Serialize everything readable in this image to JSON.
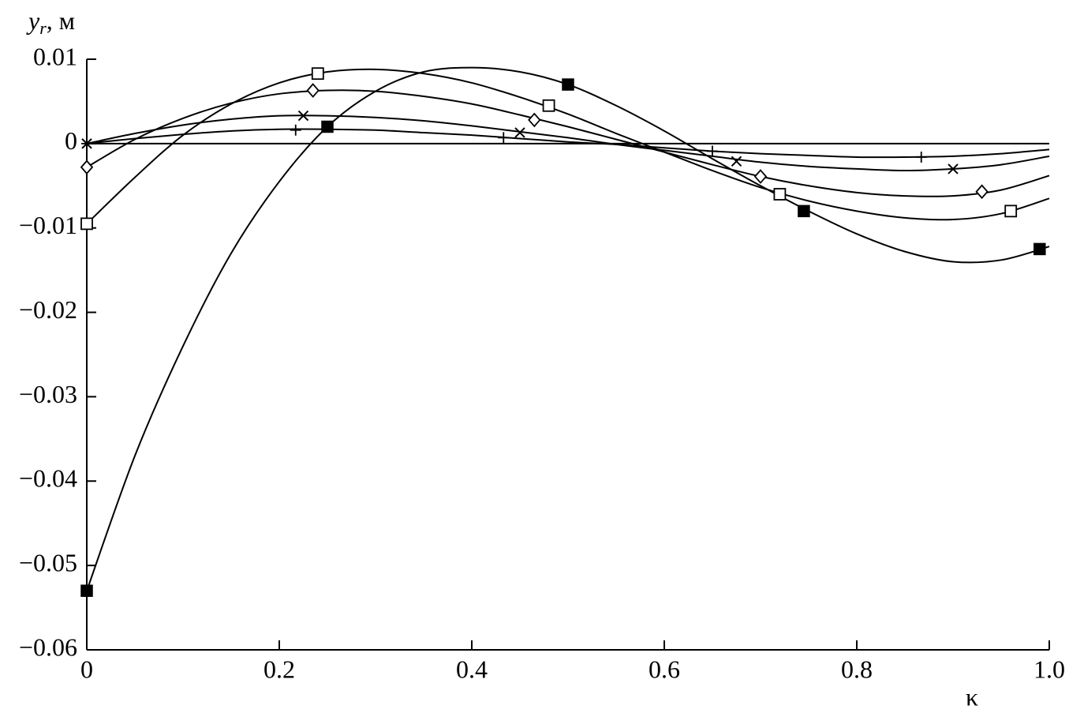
{
  "chart_data": {
    "type": "line",
    "ylabel": {
      "symbol": "y",
      "subscript": "r",
      "unit": ", м"
    },
    "xlabel": "κ",
    "xlim": [
      0,
      1
    ],
    "ylim": [
      -0.06,
      0.01
    ],
    "xticks": [
      0,
      0.2,
      0.4,
      0.6,
      0.8,
      {
        "value": 1,
        "label": "1.0"
      }
    ],
    "yticks": [
      {
        "value": 0.01,
        "label": "0.01"
      },
      0,
      {
        "value": -0.01,
        "label": "−0.01"
      },
      {
        "value": -0.02,
        "label": "−0.02"
      },
      {
        "value": -0.03,
        "label": "−0.03"
      },
      {
        "value": -0.04,
        "label": "−0.04"
      },
      {
        "value": -0.05,
        "label": "−0.05"
      },
      {
        "value": -0.06,
        "label": "−0.06"
      }
    ],
    "grid": false,
    "x": [
      0,
      0.05,
      0.1,
      0.15,
      0.2,
      0.25,
      0.3,
      0.35,
      0.4,
      0.45,
      0.5,
      0.55,
      0.6,
      0.65,
      0.7,
      0.75,
      0.8,
      0.85,
      0.9,
      0.95,
      1
    ],
    "series": [
      {
        "color": "#000000",
        "marker": "filled-square",
        "values": [
          -0.053,
          -0.037,
          -0.024,
          -0.013,
          -0.0045,
          0.002,
          0.0062,
          0.0085,
          0.009,
          0.0085,
          0.007,
          0.0045,
          0.0015,
          -0.0018,
          -0.005,
          -0.008,
          -0.0107,
          -0.0128,
          -0.014,
          -0.0138,
          -0.0122
        ],
        "marker_x": [
          0,
          0.25,
          0.5,
          0.745,
          0.99
        ],
        "marker_values": [
          -0.053,
          0.002,
          0.007,
          -0.008,
          -0.0125
        ]
      },
      {
        "color": "#000000",
        "marker": "square",
        "values": [
          -0.0095,
          -0.004,
          0.001,
          0.0047,
          0.0072,
          0.0085,
          0.0088,
          0.0083,
          0.0072,
          0.0055,
          0.0035,
          0.0012,
          -0.001,
          -0.0032,
          -0.0052,
          -0.0068,
          -0.008,
          -0.0088,
          -0.009,
          -0.0083,
          -0.0065
        ],
        "marker_x": [
          0,
          0.24,
          0.48,
          0.72,
          0.96
        ],
        "marker_values": [
          -0.0095,
          0.0083,
          0.0045,
          -0.006,
          -0.008
        ]
      },
      {
        "color": "#000000",
        "marker": "diamond",
        "values": [
          -0.0028,
          0.0005,
          0.003,
          0.0048,
          0.0059,
          0.0063,
          0.0062,
          0.0056,
          0.0047,
          0.0034,
          0.002,
          0.0005,
          -0.001,
          -0.0025,
          -0.0039,
          -0.005,
          -0.0058,
          -0.0062,
          -0.0062,
          -0.0055,
          -0.0038
        ],
        "marker_x": [
          0,
          0.235,
          0.465,
          0.7,
          0.93
        ],
        "marker_values": [
          -0.0028,
          0.0063,
          0.0028,
          -0.0039,
          -0.0057
        ]
      },
      {
        "color": "#000000",
        "marker": "x",
        "values": [
          0,
          0.0012,
          0.0022,
          0.0029,
          0.0033,
          0.0033,
          0.0031,
          0.0027,
          0.0021,
          0.0014,
          0.0007,
          -0.0001,
          -0.0008,
          -0.0015,
          -0.0022,
          -0.0027,
          -0.003,
          -0.0032,
          -0.003,
          -0.0025,
          -0.0015
        ],
        "marker_x": [
          0,
          0.225,
          0.45,
          0.675,
          0.9
        ],
        "marker_values": [
          0,
          0.0033,
          0.0013,
          -0.0021,
          -0.003
        ]
      },
      {
        "color": "#000000",
        "marker": "plus",
        "values": [
          0,
          0.0006,
          0.0011,
          0.0015,
          0.0017,
          0.0017,
          0.0016,
          0.0013,
          0.001,
          0.0006,
          0.0002,
          -0.0001,
          -0.0005,
          -0.0009,
          -0.0012,
          -0.0014,
          -0.0016,
          -0.0016,
          -0.0015,
          -0.0012,
          -0.0007
        ],
        "marker_x": [
          0,
          0.217,
          0.433,
          0.65,
          0.867
        ],
        "marker_values": [
          0,
          0.0016,
          0.0007,
          -0.0009,
          -0.0016
        ]
      }
    ]
  }
}
